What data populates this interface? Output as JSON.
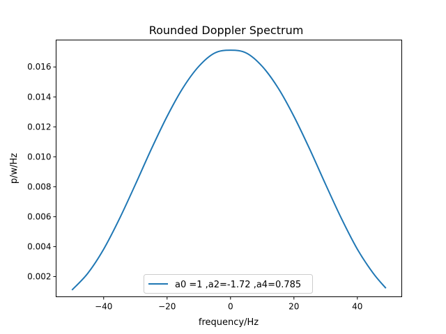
{
  "chart_data": {
    "type": "line",
    "title": "Rounded Doppler Spectrum",
    "xlabel": "frequency/Hz",
    "ylabel": "p/w/Hz",
    "xlim": [
      -55,
      54
    ],
    "ylim": [
      0.00065,
      0.0178
    ],
    "x_ticks": [
      -40,
      -20,
      0,
      20,
      40
    ],
    "x_tick_labels": [
      "−40",
      "−20",
      "0",
      "20",
      "40"
    ],
    "y_ticks": [
      0.002,
      0.004,
      0.006,
      0.008,
      0.01,
      0.012,
      0.014,
      0.016
    ],
    "y_tick_labels": [
      "0.002",
      "0.004",
      "0.006",
      "0.008",
      "0.010",
      "0.012",
      "0.014",
      "0.016"
    ],
    "grid": false,
    "legend_placement": "lower center",
    "colors": {
      "series": "#1f77b4",
      "axes": "#000000",
      "background": "#ffffff"
    },
    "series": [
      {
        "name": "a0 =1 ,a2=-1.72 ,a4=0.785",
        "x": [
          -50,
          -45,
          -40,
          -35,
          -30,
          -25,
          -20,
          -15,
          -10,
          -5,
          0,
          5,
          10,
          15,
          20,
          25,
          30,
          35,
          40,
          45,
          49
        ],
        "y": [
          0.0011,
          0.00222,
          0.00383,
          0.00587,
          0.00815,
          0.0105,
          0.0127,
          0.0146,
          0.01604,
          0.01693,
          0.01712,
          0.01693,
          0.01604,
          0.0146,
          0.0127,
          0.0105,
          0.00815,
          0.00587,
          0.00383,
          0.00222,
          0.00122
        ]
      }
    ]
  }
}
